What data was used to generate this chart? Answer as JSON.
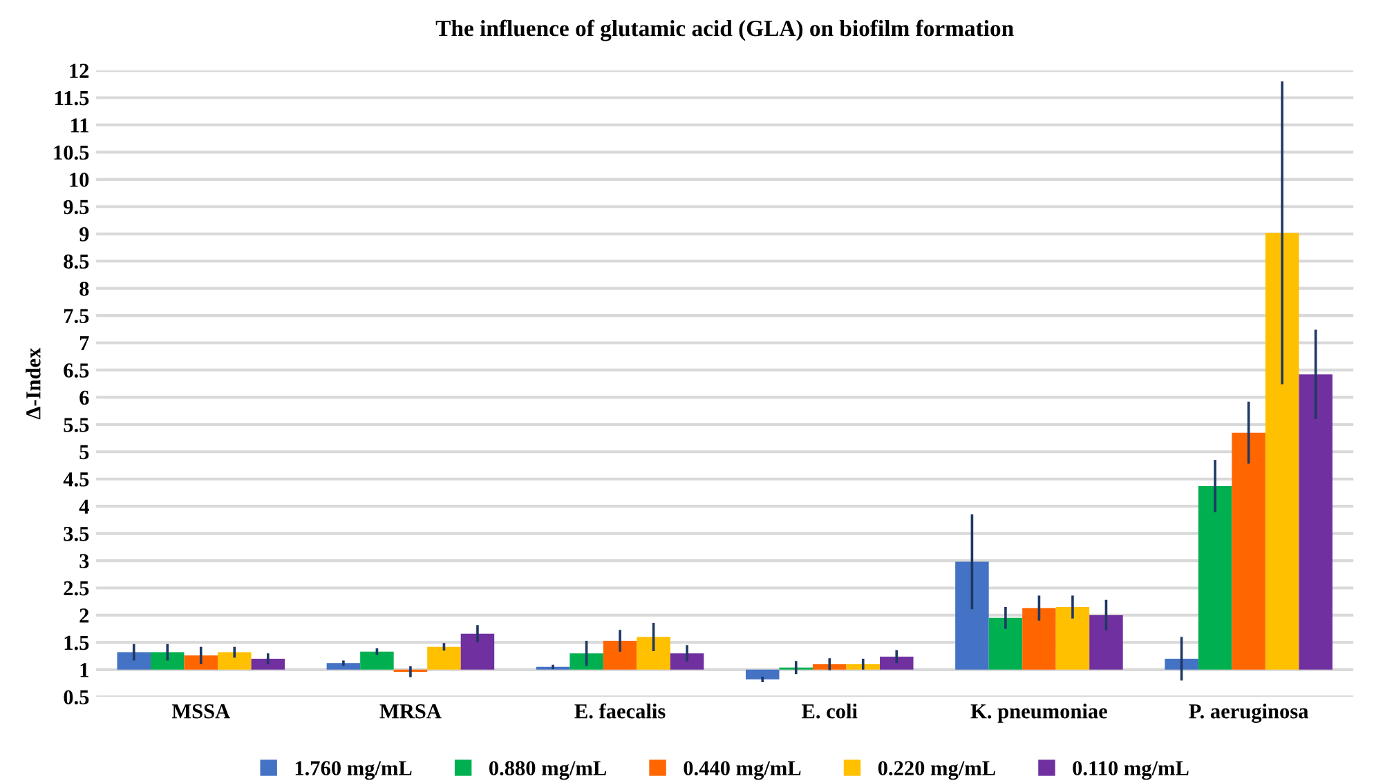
{
  "chart_data": {
    "type": "bar",
    "title": "The influence of glutamic acid (GLA) on biofilm formation",
    "ylabel": "Δ-Index",
    "categories": [
      "MSSA",
      "MRSA",
      "E. faecalis",
      "E. coli",
      "K. pneumoniae",
      "P. aeruginosa"
    ],
    "series": [
      {
        "name": "1.760 mg/mL",
        "color": "#4472c4",
        "base": [
          1,
          1,
          1,
          1,
          1,
          1
        ],
        "values": [
          0.32,
          0.12,
          0.05,
          -0.18,
          1.98,
          0.2
        ],
        "errors": [
          0.15,
          0.05,
          0.04,
          0.05,
          0.87,
          0.4
        ]
      },
      {
        "name": "0.880 mg/mL",
        "color": "#00b050",
        "base": [
          1,
          1,
          1,
          1,
          1,
          1
        ],
        "values": [
          0.32,
          0.33,
          0.3,
          0.04,
          0.95,
          3.37
        ],
        "errors": [
          0.15,
          0.06,
          0.23,
          0.12,
          0.2,
          0.48
        ]
      },
      {
        "name": "0.440 mg/mL",
        "color": "#ff6600",
        "base": [
          1,
          1,
          1,
          1,
          1,
          1
        ],
        "values": [
          0.26,
          -0.04,
          0.53,
          0.1,
          1.13,
          4.35
        ],
        "errors": [
          0.16,
          0.1,
          0.2,
          0.11,
          0.23,
          0.57
        ]
      },
      {
        "name": "0.220 mg/mL",
        "color": "#ffc000",
        "base": [
          1,
          1,
          1,
          1,
          1,
          1
        ],
        "values": [
          0.32,
          0.42,
          0.6,
          0.1,
          1.15,
          8.02
        ],
        "errors": [
          0.1,
          0.07,
          0.26,
          0.1,
          0.21,
          2.78
        ]
      },
      {
        "name": "0.110 mg/mL",
        "color": "#7030a0",
        "base": [
          1,
          1,
          1,
          1,
          1,
          1
        ],
        "values": [
          0.2,
          0.66,
          0.3,
          0.24,
          1.0,
          5.42
        ],
        "errors": [
          0.1,
          0.16,
          0.15,
          0.12,
          0.28,
          0.82
        ]
      }
    ],
    "ylim": [
      0.5,
      12
    ],
    "yticks": [
      0.5,
      1,
      1.5,
      2,
      2.5,
      3,
      3.5,
      4,
      4.5,
      5,
      5.5,
      6,
      6.5,
      7,
      7.5,
      8,
      8.5,
      9,
      9.5,
      10,
      10.5,
      11,
      11.5,
      12
    ],
    "grid": "y",
    "legend": "bottom"
  }
}
